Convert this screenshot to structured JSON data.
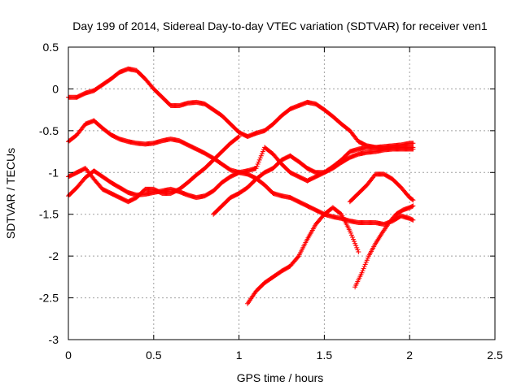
{
  "chart_data": {
    "type": "scatter",
    "title": "Day 199 of 2014, Sidereal Day-to-day VTEC variation (SDTVAR) for receiver ven1",
    "xlabel": "GPS time / hours",
    "ylabel": "SDTVAR / TECUs",
    "xlim": [
      0,
      2.5
    ],
    "ylim": [
      -3,
      0.5
    ],
    "x_ticks": [
      "0",
      "0.5",
      "1",
      "1.5",
      "2",
      "2.5"
    ],
    "y_ticks": [
      "0.5",
      "0",
      "-0.5",
      "-1",
      "-1.5",
      "-2",
      "-2.5",
      "-3"
    ],
    "grid": true,
    "marker": "+",
    "color": "#ff0000",
    "series": [
      {
        "x": [
          0,
          0.05,
          0.1,
          0.15,
          0.2,
          0.25,
          0.3,
          0.35,
          0.4,
          0.45,
          0.5,
          0.55,
          0.6,
          0.65,
          0.7,
          0.75,
          0.8,
          0.85,
          0.9,
          0.95,
          1.0,
          1.05
        ],
        "y": [
          -0.1,
          -0.1,
          -0.05,
          -0.02,
          0.05,
          0.12,
          0.2,
          0.24,
          0.22,
          0.12,
          0.0,
          -0.1,
          -0.2,
          -0.2,
          -0.17,
          -0.16,
          -0.18,
          -0.25,
          -0.32,
          -0.42,
          -0.52,
          -0.57
        ]
      },
      {
        "x": [
          1.05,
          1.1,
          1.15,
          1.2,
          1.25,
          1.3,
          1.35,
          1.4,
          1.45,
          1.5,
          1.55,
          1.6,
          1.65,
          1.7,
          1.75,
          1.8,
          1.85,
          1.9,
          1.95,
          2.0,
          2.02
        ],
        "y": [
          -0.57,
          -0.53,
          -0.5,
          -0.42,
          -0.32,
          -0.24,
          -0.2,
          -0.16,
          -0.18,
          -0.25,
          -0.33,
          -0.42,
          -0.5,
          -0.63,
          -0.68,
          -0.7,
          -0.71,
          -0.7,
          -0.7,
          -0.7,
          -0.7
        ]
      },
      {
        "x": [
          0,
          0.05,
          0.1,
          0.15,
          0.2,
          0.25,
          0.3,
          0.35,
          0.4,
          0.45,
          0.5,
          0.55,
          0.6,
          0.65,
          0.7,
          0.75,
          0.8,
          0.85,
          0.9,
          0.95,
          1.0
        ],
        "y": [
          -0.63,
          -0.55,
          -0.42,
          -0.38,
          -0.47,
          -0.55,
          -0.6,
          -0.63,
          -0.65,
          -0.66,
          -0.65,
          -0.62,
          -0.6,
          -0.62,
          -0.67,
          -0.72,
          -0.77,
          -0.83,
          -0.9,
          -0.97,
          -1.0
        ]
      },
      {
        "x": [
          1.0,
          1.05,
          1.1,
          1.15,
          1.2,
          1.25,
          1.3,
          1.35,
          1.4,
          1.45,
          1.5,
          1.55,
          1.6,
          1.65,
          1.7,
          1.75,
          1.8,
          1.85,
          1.9,
          1.95,
          2.0,
          2.02
        ],
        "y": [
          -1.0,
          -1.02,
          -1.07,
          -1.15,
          -1.25,
          -1.28,
          -1.3,
          -1.35,
          -1.4,
          -1.45,
          -1.5,
          -1.53,
          -1.55,
          -1.58,
          -1.6,
          -1.6,
          -1.6,
          -1.62,
          -1.58,
          -1.52,
          -1.55,
          -1.57
        ]
      },
      {
        "x": [
          0,
          0.05,
          0.1,
          0.15,
          0.2,
          0.25,
          0.3,
          0.35,
          0.4,
          0.45,
          0.5,
          0.55,
          0.6,
          0.65,
          0.7,
          0.75,
          0.8,
          0.85,
          0.9,
          0.95,
          1.0
        ],
        "y": [
          -1.05,
          -1.0,
          -0.95,
          -1.08,
          -1.2,
          -1.25,
          -1.3,
          -1.35,
          -1.3,
          -1.2,
          -1.2,
          -1.25,
          -1.25,
          -1.2,
          -1.12,
          -1.03,
          -0.95,
          -0.85,
          -0.75,
          -0.65,
          -0.57
        ]
      },
      {
        "x": [
          0,
          0.05,
          0.1,
          0.15,
          0.2,
          0.25,
          0.3,
          0.35,
          0.4,
          0.45,
          0.5,
          0.55,
          0.6,
          0.65,
          0.7,
          0.75,
          0.8,
          0.85,
          0.9,
          0.95,
          1.0,
          1.05
        ],
        "y": [
          -1.28,
          -1.18,
          -1.06,
          -0.98,
          -1.05,
          -1.12,
          -1.18,
          -1.24,
          -1.27,
          -1.26,
          -1.24,
          -1.22,
          -1.2,
          -1.23,
          -1.27,
          -1.3,
          -1.28,
          -1.22,
          -1.12,
          -1.05,
          -1.0,
          -0.98
        ]
      },
      {
        "x": [
          1.05,
          1.1,
          1.15,
          1.2,
          1.25,
          1.3,
          1.35,
          1.4,
          1.45,
          1.5,
          1.55,
          1.6,
          1.65,
          1.7,
          1.75,
          1.8,
          1.85,
          1.9,
          1.95,
          2.0,
          2.02
        ],
        "y": [
          -0.98,
          -0.95,
          -0.7,
          -0.78,
          -0.9,
          -1.0,
          -1.05,
          -1.1,
          -1.05,
          -1.0,
          -0.93,
          -0.85,
          -0.75,
          -0.72,
          -0.7,
          -0.7,
          -0.69,
          -0.68,
          -0.67,
          -0.65,
          -0.65
        ]
      },
      {
        "x": [
          0.85,
          0.9,
          0.95,
          1.0,
          1.05,
          1.1,
          1.15,
          1.2,
          1.25,
          1.3,
          1.35,
          1.4,
          1.45,
          1.5,
          1.55,
          1.6,
          1.65,
          1.7,
          1.75,
          1.8,
          1.85,
          1.9,
          1.95,
          2.0,
          2.02
        ],
        "y": [
          -1.5,
          -1.4,
          -1.3,
          -1.25,
          -1.18,
          -1.08,
          -1.0,
          -0.95,
          -0.85,
          -0.8,
          -0.87,
          -0.95,
          -1.0,
          -1.0,
          -0.95,
          -0.88,
          -0.82,
          -0.78,
          -0.76,
          -0.75,
          -0.73,
          -0.72,
          -0.72,
          -0.72,
          -0.72
        ]
      },
      {
        "x": [
          1.05,
          1.1,
          1.15,
          1.2,
          1.25,
          1.3,
          1.35,
          1.4,
          1.45,
          1.5
        ],
        "y": [
          -2.57,
          -2.42,
          -2.32,
          -2.25,
          -2.18,
          -2.12,
          -2.0,
          -1.8,
          -1.62,
          -1.5
        ]
      },
      {
        "x": [
          1.5,
          1.55,
          1.6,
          1.65,
          1.7
        ],
        "y": [
          -1.5,
          -1.42,
          -1.5,
          -1.7,
          -1.95
        ]
      },
      {
        "x": [
          1.65,
          1.7,
          1.75,
          1.8,
          1.85,
          1.9,
          1.95,
          2.0,
          2.02
        ],
        "y": [
          -1.35,
          -1.25,
          -1.15,
          -1.02,
          -1.02,
          -1.08,
          -1.18,
          -1.3,
          -1.33
        ]
      },
      {
        "x": [
          1.68,
          1.72,
          1.76,
          1.8,
          1.84,
          1.88,
          1.92,
          1.96,
          2.0,
          2.02
        ],
        "y": [
          -2.37,
          -2.2,
          -2.0,
          -1.85,
          -1.72,
          -1.6,
          -1.5,
          -1.45,
          -1.42,
          -1.4
        ]
      }
    ]
  }
}
